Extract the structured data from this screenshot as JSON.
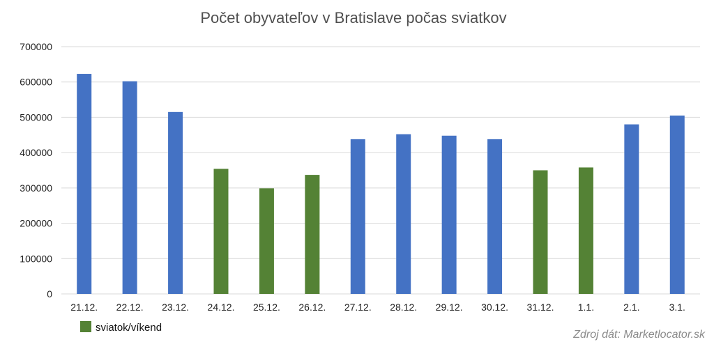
{
  "chart_data": {
    "type": "bar",
    "title": "Počet obyvateľov v Bratislave počas sviatkov",
    "categories": [
      "21.12.",
      "22.12.",
      "23.12.",
      "24.12.",
      "25.12.",
      "26.12.",
      "27.12.",
      "28.12.",
      "29.12.",
      "30.12.",
      "31.12.",
      "1.1.",
      "2.1.",
      "3.1."
    ],
    "values": [
      623000,
      602000,
      515000,
      354000,
      299000,
      337000,
      438000,
      452000,
      448000,
      438000,
      350000,
      358000,
      480000,
      505000
    ],
    "holiday": [
      false,
      false,
      false,
      true,
      true,
      true,
      false,
      false,
      false,
      false,
      true,
      true,
      false,
      false
    ],
    "ylim": [
      0,
      700000
    ],
    "yticks": [
      0,
      100000,
      200000,
      300000,
      400000,
      500000,
      600000,
      700000
    ],
    "ytick_labels": [
      "0",
      "100000",
      "200000",
      "300000",
      "400000",
      "500000",
      "600000",
      "700000"
    ],
    "xlabel": "",
    "ylabel": "",
    "grid": true,
    "colors": {
      "workday": "#4472c4",
      "holiday": "#548235"
    },
    "legend": [
      {
        "label": "sviatok/víkend",
        "color": "#548235"
      }
    ],
    "legend_position": "bottom-left",
    "source": "Zdroj dát: Marketlocator.sk"
  }
}
